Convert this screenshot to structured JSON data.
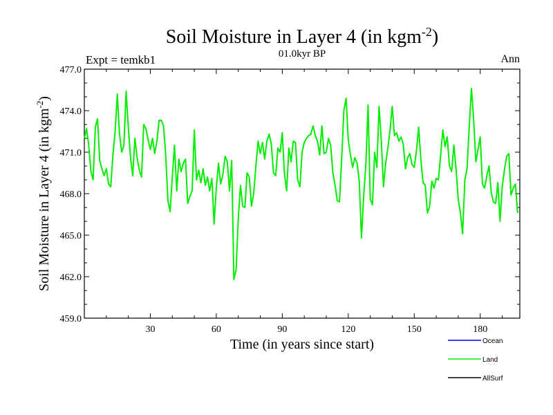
{
  "chart_data": {
    "type": "line",
    "title": "Soil Moisture in Layer 4 (in kgm",
    "title_sup": "-2",
    "title_close": ")",
    "subtitle_left": "Expt = temkb1",
    "subtitle_center": "01.0kyr BP",
    "subtitle_right": "Ann",
    "xlabel": "Time (in years since start)",
    "ylabel": "Soil Moisture in Layer 4 (in kgm",
    "ylabel_sup": "-2",
    "ylabel_close": ")",
    "xlim": [
      0,
      198
    ],
    "ylim": [
      459.0,
      477.0
    ],
    "x_ticks": [
      30,
      60,
      90,
      120,
      150,
      180
    ],
    "x_tick_labels": [
      "30",
      "60",
      "90",
      "120",
      "150",
      "180"
    ],
    "y_ticks": [
      459.0,
      462.0,
      465.0,
      468.0,
      471.0,
      474.0,
      477.0
    ],
    "y_tick_labels": [
      "459.0",
      "462.0",
      "465.0",
      "468.0",
      "471.0",
      "474.0",
      "477.0"
    ],
    "legend": [
      {
        "name": "Ocean",
        "color": "#0000ff"
      },
      {
        "name": "Land",
        "color": "#00ee00"
      },
      {
        "name": "AllSurf",
        "color": "#000000"
      }
    ],
    "series": [
      {
        "name": "Land",
        "color": "#00ee00",
        "values": [
          472.0,
          472.7,
          471.5,
          469.6,
          469.0,
          472.8,
          473.4,
          470.4,
          469.8,
          469.3,
          469.8,
          468.7,
          468.5,
          470.8,
          472.5,
          475.2,
          472.3,
          471.0,
          471.5,
          475.4,
          472.8,
          470.6,
          469.3,
          472.0,
          470.6,
          469.7,
          469.2,
          473.0,
          472.7,
          471.9,
          471.2,
          472.0,
          470.9,
          471.8,
          473.3,
          473.3,
          472.9,
          470.8,
          467.5,
          466.7,
          469.2,
          471.5,
          468.2,
          470.5,
          469.6,
          470.2,
          470.5,
          467.3,
          467.8,
          468.2,
          472.6,
          469.0,
          469.7,
          468.8,
          469.8,
          468.6,
          469.2,
          468.2,
          469.1,
          465.8,
          468.4,
          470.2,
          468.7,
          469.4,
          470.7,
          470.3,
          468.2,
          470.4,
          461.8,
          462.5,
          466.2,
          468.6,
          467.1,
          467.0,
          469.5,
          469.2,
          467.1,
          468.0,
          470.0,
          471.8,
          470.9,
          471.7,
          470.5,
          471.8,
          472.3,
          471.6,
          469.5,
          469.3,
          471.3,
          471.0,
          472.4,
          469.4,
          468.2,
          471.3,
          470.3,
          471.8,
          471.7,
          469.0,
          468.5,
          471.0,
          471.7,
          472.0,
          472.2,
          472.3,
          472.9,
          472.2,
          471.8,
          470.8,
          472.9,
          470.9,
          471.0,
          472.0,
          471.5,
          469.5,
          468.6,
          467.5,
          467.4,
          470.5,
          474.0,
          474.9,
          471.9,
          470.8,
          469.9,
          470.6,
          470.2,
          468.9,
          464.8,
          467.8,
          470.1,
          474.4,
          467.6,
          467.2,
          471.0,
          469.9,
          474.3,
          471.9,
          468.5,
          470.2,
          471.3,
          472.6,
          474.3,
          472.2,
          472.4,
          471.8,
          472.1,
          471.6,
          469.8,
          470.6,
          470.9,
          470.1,
          469.9,
          471.1,
          472.8,
          470.5,
          468.8,
          468.6,
          466.6,
          467.1,
          468.9,
          468.4,
          469.1,
          469.0,
          470.8,
          472.6,
          471.4,
          472.1,
          470.0,
          469.6,
          471.5,
          469.8,
          467.6,
          466.6,
          465.1,
          469.0,
          469.8,
          472.8,
          475.6,
          473.4,
          470.3,
          471.2,
          472.1,
          468.7,
          468.4,
          469.3,
          470.0,
          468.1,
          467.4,
          467.3,
          468.8,
          466.0,
          468.5,
          469.7,
          470.7,
          470.9,
          467.9,
          468.4,
          468.7,
          466.6
        ]
      },
      {
        "name": "Ocean",
        "color": "#0000ff",
        "values": []
      },
      {
        "name": "AllSurf",
        "color": "#000000",
        "values": []
      }
    ]
  }
}
